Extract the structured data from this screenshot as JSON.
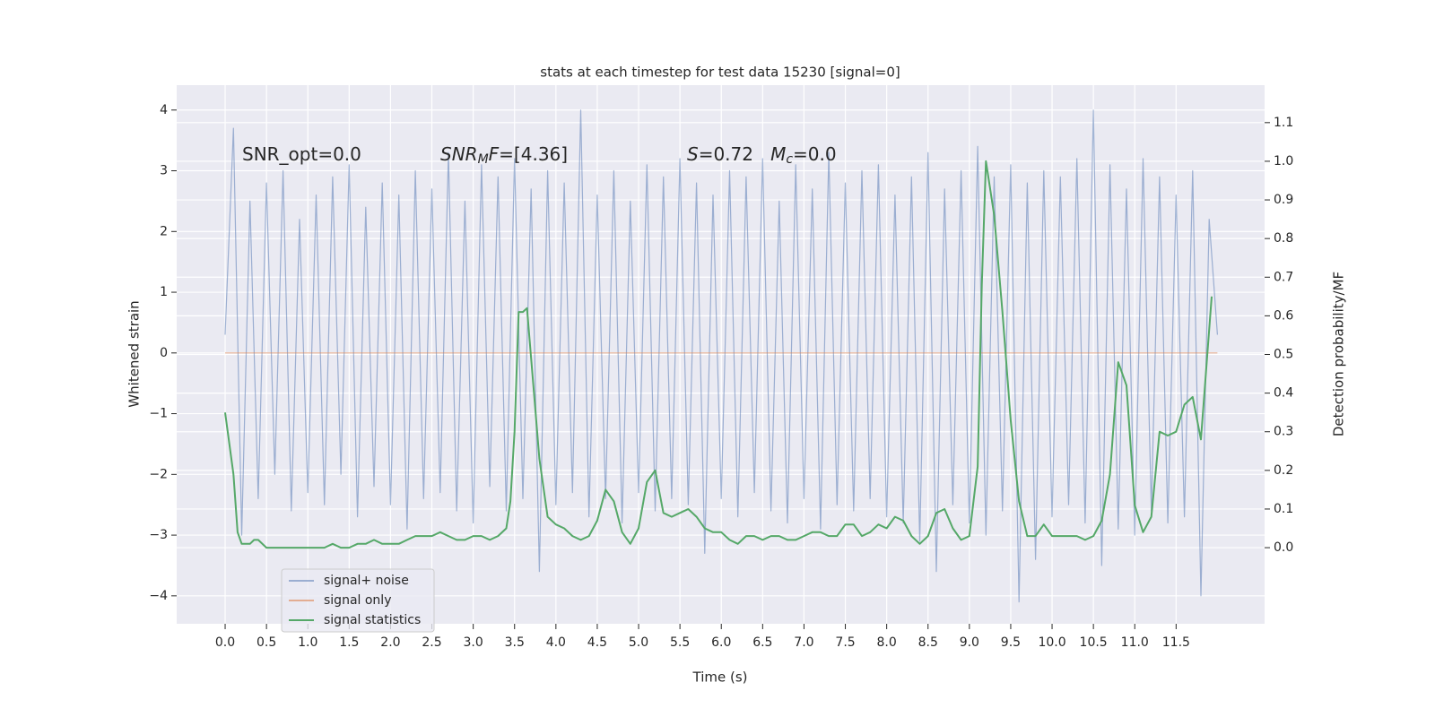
{
  "chart_data": {
    "type": "line",
    "title": "stats at each timestep for test data 15230 [signal=0]",
    "xlabel": "Time (s)",
    "ylabel": "Whitened strain",
    "y2label": "Detection probability/MF",
    "xlim": [
      -0.586,
      12.57
    ],
    "ylim": [
      -4.46,
      4.41
    ],
    "y2lim": [
      -0.197,
      1.197
    ],
    "xticks": [
      {
        "value": 0,
        "label": "0.0"
      },
      0.5,
      {
        "value": 1,
        "label": "1.0"
      },
      1.5,
      {
        "value": 2,
        "label": "2.0"
      },
      2.5,
      {
        "value": 3,
        "label": "3.0"
      },
      3.5,
      {
        "value": 4,
        "label": "4.0"
      },
      4.5,
      {
        "value": 5,
        "label": "5.0"
      },
      5.5,
      {
        "value": 6,
        "label": "6.0"
      },
      6.5,
      {
        "value": 7,
        "label": "7.0"
      },
      7.5,
      {
        "value": 8,
        "label": "8.0"
      },
      8.5,
      {
        "value": 9,
        "label": "9.0"
      },
      9.5,
      {
        "value": 10,
        "label": "10.0"
      },
      10.5,
      {
        "value": 11,
        "label": "11.0"
      },
      11.5
    ],
    "yticks": [
      {
        "value": -4,
        "label": "−4"
      },
      {
        "value": -3,
        "label": "−3"
      },
      {
        "value": -2,
        "label": "−2"
      },
      {
        "value": -1,
        "label": "−1"
      },
      0,
      1,
      2,
      3,
      4
    ],
    "y2ticks": [
      {
        "value": 0,
        "label": "0.0"
      },
      0.1,
      0.2,
      0.3,
      0.4,
      0.5,
      0.6,
      0.7,
      0.8,
      0.9,
      {
        "value": 1,
        "label": "1.0"
      },
      1.1
    ],
    "grid": true,
    "legend": "lower left",
    "annotations": [
      {
        "parts": [
          {
            "text": "SNR_opt=0.0"
          }
        ]
      },
      {
        "parts": [
          {
            "text": "SNR",
            "italic": true
          },
          {
            "text": "M",
            "italic": true,
            "sub": true
          },
          {
            "text": "F",
            "italic": true
          },
          {
            "text": "=[4.36]"
          }
        ]
      },
      {
        "parts": [
          {
            "text": "S",
            "italic": true
          },
          {
            "text": "=0.72   "
          },
          {
            "text": "M",
            "italic": true
          },
          {
            "text": "c",
            "italic": true,
            "sub": true
          },
          {
            "text": "=0.0"
          }
        ]
      }
    ],
    "series": [
      {
        "name": "signal+ noise",
        "color": "#4c72b0",
        "opacity": 0.5,
        "x": [
          0,
          0.1,
          0.2,
          0.3,
          0.4,
          0.5,
          0.6,
          0.7,
          0.8,
          0.9,
          1.0,
          1.1,
          1.2,
          1.3,
          1.4,
          1.5,
          1.6,
          1.7,
          1.8,
          1.9,
          2.0,
          2.1,
          2.2,
          2.3,
          2.4,
          2.5,
          2.6,
          2.7,
          2.8,
          2.9,
          3.0,
          3.1,
          3.2,
          3.3,
          3.4,
          3.5,
          3.6,
          3.7,
          3.8,
          3.9,
          4.0,
          4.1,
          4.2,
          4.3,
          4.4,
          4.5,
          4.6,
          4.7,
          4.8,
          4.9,
          5.0,
          5.1,
          5.2,
          5.3,
          5.4,
          5.5,
          5.6,
          5.7,
          5.8,
          5.9,
          6.0,
          6.1,
          6.2,
          6.3,
          6.4,
          6.5,
          6.6,
          6.7,
          6.8,
          6.9,
          7.0,
          7.1,
          7.2,
          7.3,
          7.4,
          7.5,
          7.6,
          7.7,
          7.8,
          7.9,
          8.0,
          8.1,
          8.2,
          8.3,
          8.4,
          8.5,
          8.6,
          8.7,
          8.8,
          8.9,
          9.0,
          9.1,
          9.2,
          9.3,
          9.4,
          9.5,
          9.6,
          9.7,
          9.8,
          9.9,
          10.0,
          10.1,
          10.2,
          10.3,
          10.4,
          10.5,
          10.6,
          10.7,
          10.8,
          10.9,
          11.0,
          11.1,
          11.2,
          11.3,
          11.4,
          11.5,
          11.6,
          11.7,
          11.8,
          11.9,
          12.0
        ],
        "values": [
          0.3,
          3.7,
          -3.0,
          2.5,
          -2.4,
          2.8,
          -2.0,
          3.0,
          -2.6,
          2.2,
          -2.3,
          2.6,
          -2.5,
          2.9,
          -2.0,
          3.1,
          -2.7,
          2.4,
          -2.2,
          2.8,
          -2.5,
          2.6,
          -2.9,
          3.0,
          -2.4,
          2.7,
          -2.3,
          3.3,
          -2.6,
          2.5,
          -2.8,
          3.1,
          -2.2,
          2.9,
          -2.6,
          3.2,
          -2.4,
          2.7,
          -3.6,
          3.0,
          -2.5,
          2.8,
          -2.3,
          4.0,
          -2.7,
          2.6,
          -2.4,
          3.0,
          -2.8,
          2.5,
          -2.3,
          3.1,
          -2.6,
          2.9,
          -2.4,
          3.2,
          -2.5,
          2.8,
          -3.3,
          2.6,
          -2.4,
          3.0,
          -2.7,
          2.9,
          -2.3,
          3.2,
          -2.6,
          2.5,
          -2.8,
          3.1,
          -2.4,
          2.7,
          -2.9,
          3.3,
          -2.5,
          2.8,
          -2.6,
          3.0,
          -2.4,
          3.1,
          -2.7,
          2.6,
          -2.8,
          2.9,
          -3.1,
          3.3,
          -3.6,
          2.7,
          -2.5,
          3.0,
          -2.8,
          3.4,
          -3.0,
          2.9,
          -2.6,
          3.1,
          -4.1,
          2.8,
          -3.4,
          3.0,
          -2.7,
          2.9,
          -2.5,
          3.2,
          -2.8,
          4.0,
          -3.5,
          3.1,
          -2.9,
          2.7,
          -3.0,
          3.2,
          -2.6,
          2.9,
          -2.8,
          2.6,
          -2.7,
          3.0,
          -4.0,
          2.2,
          0.3
        ]
      },
      {
        "name": "signal only",
        "color": "#dd8452",
        "opacity": 0.6,
        "x": [
          0,
          12.0
        ],
        "values": [
          0,
          0
        ]
      },
      {
        "name": "signal statistics",
        "color": "#55a868",
        "opacity": 1,
        "axis": "y2",
        "x": [
          0,
          0.1,
          0.15,
          0.2,
          0.3,
          0.35,
          0.4,
          0.5,
          0.6,
          0.7,
          0.8,
          0.9,
          1.0,
          1.1,
          1.2,
          1.3,
          1.4,
          1.5,
          1.6,
          1.7,
          1.8,
          1.9,
          2.0,
          2.1,
          2.2,
          2.3,
          2.4,
          2.5,
          2.6,
          2.7,
          2.8,
          2.9,
          3.0,
          3.1,
          3.2,
          3.3,
          3.4,
          3.45,
          3.5,
          3.55,
          3.6,
          3.65,
          3.7,
          3.8,
          3.9,
          4.0,
          4.1,
          4.2,
          4.3,
          4.4,
          4.5,
          4.6,
          4.7,
          4.8,
          4.9,
          5.0,
          5.1,
          5.2,
          5.3,
          5.4,
          5.5,
          5.6,
          5.7,
          5.8,
          5.9,
          6.0,
          6.1,
          6.2,
          6.3,
          6.4,
          6.5,
          6.6,
          6.7,
          6.8,
          6.9,
          7.0,
          7.1,
          7.2,
          7.3,
          7.4,
          7.5,
          7.6,
          7.7,
          7.8,
          7.9,
          8.0,
          8.1,
          8.2,
          8.3,
          8.4,
          8.5,
          8.6,
          8.7,
          8.8,
          8.9,
          9.0,
          9.1,
          9.15,
          9.2,
          9.3,
          9.4,
          9.5,
          9.6,
          9.7,
          9.8,
          9.9,
          10.0,
          10.1,
          10.2,
          10.3,
          10.4,
          10.5,
          10.6,
          10.7,
          10.8,
          10.9,
          11.0,
          11.1,
          11.2,
          11.3,
          11.4,
          11.5,
          11.6,
          11.7,
          11.8,
          11.93
        ],
        "values": [
          0.35,
          0.19,
          0.04,
          0.01,
          0.01,
          0.02,
          0.02,
          0.0,
          0.0,
          0.0,
          0.0,
          0.0,
          0.0,
          0.0,
          0.0,
          0.01,
          0.0,
          0.0,
          0.01,
          0.01,
          0.02,
          0.01,
          0.01,
          0.01,
          0.02,
          0.03,
          0.03,
          0.03,
          0.04,
          0.03,
          0.02,
          0.02,
          0.03,
          0.03,
          0.02,
          0.03,
          0.05,
          0.12,
          0.3,
          0.61,
          0.61,
          0.62,
          0.49,
          0.23,
          0.08,
          0.06,
          0.05,
          0.03,
          0.02,
          0.03,
          0.07,
          0.15,
          0.12,
          0.04,
          0.01,
          0.05,
          0.17,
          0.2,
          0.09,
          0.08,
          0.09,
          0.1,
          0.08,
          0.05,
          0.04,
          0.04,
          0.02,
          0.01,
          0.03,
          0.03,
          0.02,
          0.03,
          0.03,
          0.02,
          0.02,
          0.03,
          0.04,
          0.04,
          0.03,
          0.03,
          0.06,
          0.06,
          0.03,
          0.04,
          0.06,
          0.05,
          0.08,
          0.07,
          0.03,
          0.01,
          0.03,
          0.09,
          0.1,
          0.05,
          0.02,
          0.03,
          0.21,
          0.68,
          1.0,
          0.86,
          0.61,
          0.33,
          0.12,
          0.03,
          0.03,
          0.06,
          0.03,
          0.03,
          0.03,
          0.03,
          0.02,
          0.03,
          0.07,
          0.19,
          0.48,
          0.42,
          0.11,
          0.04,
          0.08,
          0.3,
          0.29,
          0.3,
          0.37,
          0.39,
          0.28,
          0.65
        ]
      }
    ]
  }
}
